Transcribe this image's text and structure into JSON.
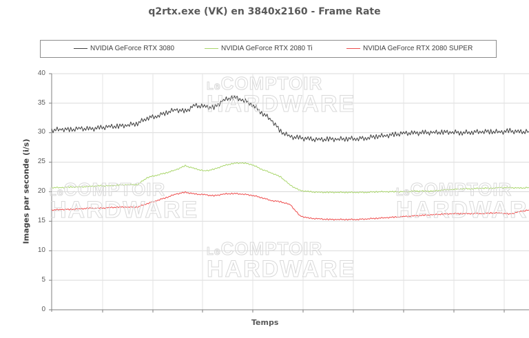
{
  "title": "q2rtx.exe (VK) en 3840x2160 - Frame Rate",
  "legend": [
    {
      "label": "NVIDIA GeForce RTX 3080",
      "color": "#404040"
    },
    {
      "label": "NVIDIA GeForce RTX 2080 Ti",
      "color": "#a9d66b"
    },
    {
      "label": "NVIDIA GeForce RTX 2080 SUPER",
      "color": "#ee4c4c"
    }
  ],
  "watermark": {
    "line1_prefix": "Le",
    "line1": "COMPTOIR",
    "line2_prefix": "du",
    "line2": "HARDWARE"
  },
  "axes": {
    "ylabel": "Images par seconde (i/s)",
    "xlabel": "Temps",
    "yticks": [
      "0",
      "5",
      "10",
      "15",
      "20",
      "25",
      "30",
      "35",
      "40"
    ]
  },
  "chart_data": {
    "type": "line",
    "title": "q2rtx.exe (VK) en 3840x2160 - Frame Rate",
    "xlabel": "Temps",
    "ylabel": "Images par seconde (i/s)",
    "ylim": [
      0,
      40
    ],
    "yticks": [
      0,
      5,
      10,
      15,
      20,
      25,
      30,
      35,
      40
    ],
    "grid": true,
    "legend_position": "top",
    "x": [
      0,
      2,
      4,
      6,
      8,
      10,
      12,
      14,
      16,
      18,
      20,
      22,
      24,
      26,
      28,
      30,
      32,
      34,
      36,
      38,
      40,
      42,
      44,
      46,
      48,
      50,
      52,
      54,
      56,
      58,
      60,
      62,
      64,
      66,
      68,
      70,
      72,
      74,
      76,
      78,
      80,
      82,
      84,
      86,
      88,
      90,
      92,
      94,
      96,
      98,
      100
    ],
    "series": [
      {
        "name": "NVIDIA GeForce RTX 3080",
        "color": "#404040",
        "values": [
          30.4,
          30.6,
          30.5,
          30.7,
          30.6,
          30.8,
          31.0,
          31.1,
          31.3,
          31.6,
          32.5,
          32.8,
          33.4,
          33.9,
          33.6,
          34.6,
          34.4,
          34.2,
          35.5,
          36.0,
          35.6,
          34.8,
          33.4,
          32.2,
          30.2,
          29.3,
          29.1,
          28.9,
          28.8,
          28.9,
          28.9,
          29.0,
          29.0,
          29.1,
          29.4,
          29.5,
          29.7,
          29.9,
          29.9,
          30.0,
          30.0,
          30.1,
          30.1,
          30.0,
          30.1,
          30.2,
          30.2,
          30.1,
          30.3,
          30.1,
          30.2
        ]
      },
      {
        "name": "NVIDIA GeForce RTX 2080 Ti",
        "color": "#a9d66b",
        "values": [
          20.7,
          20.7,
          20.8,
          20.8,
          20.9,
          21.0,
          21.0,
          21.1,
          21.2,
          21.2,
          22.4,
          22.8,
          23.2,
          23.7,
          24.4,
          23.9,
          23.5,
          23.8,
          24.4,
          24.8,
          24.9,
          24.6,
          23.8,
          23.2,
          22.5,
          21.1,
          20.2,
          20.0,
          19.9,
          19.9,
          19.9,
          19.9,
          19.9,
          19.9,
          20.0,
          20.0,
          20.0,
          20.0,
          20.1,
          20.1,
          20.1,
          20.3,
          20.4,
          20.5,
          20.5,
          20.6,
          20.6,
          20.7,
          20.7,
          20.6,
          20.7
        ]
      },
      {
        "name": "NVIDIA GeForce RTX 2080 SUPER",
        "color": "#ee4c4c",
        "values": [
          16.9,
          17.0,
          17.0,
          17.1,
          17.2,
          17.2,
          17.3,
          17.4,
          17.4,
          17.4,
          18.0,
          18.5,
          19.0,
          19.6,
          19.9,
          19.6,
          19.5,
          19.3,
          19.6,
          19.7,
          19.6,
          19.4,
          19.0,
          18.5,
          18.3,
          17.8,
          15.9,
          15.5,
          15.4,
          15.3,
          15.3,
          15.3,
          15.3,
          15.4,
          15.5,
          15.6,
          15.7,
          15.8,
          15.9,
          16.0,
          16.1,
          16.2,
          16.3,
          16.3,
          16.3,
          16.3,
          16.4,
          16.4,
          16.2,
          16.6,
          16.9
        ]
      }
    ]
  }
}
